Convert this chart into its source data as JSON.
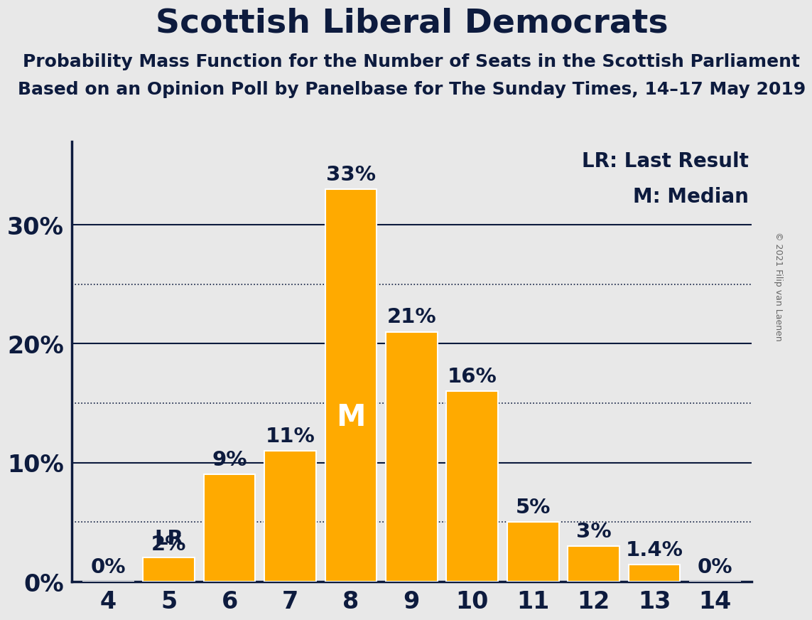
{
  "title": "Scottish Liberal Democrats",
  "subtitle1": "Probability Mass Function for the Number of Seats in the Scottish Parliament",
  "subtitle2": "Based on an Opinion Poll by Panelbase for The Sunday Times, 14–17 May 2019",
  "copyright": "© 2021 Filip van Laenen",
  "categories": [
    4,
    5,
    6,
    7,
    8,
    9,
    10,
    11,
    12,
    13,
    14
  ],
  "values": [
    0,
    2,
    9,
    11,
    33,
    21,
    16,
    5,
    3,
    1.4,
    0
  ],
  "bar_color": "#FFAA00",
  "bar_edge_color": "#FFFFFF",
  "background_color": "#E8E8E8",
  "axis_text_color": "#0D1B3E",
  "title_color": "#0D1B3E",
  "gridline_solid_color": "#0D1B3E",
  "gridline_dotted_color": "#0D1B3E",
  "ylim": [
    0,
    37
  ],
  "yticks_solid": [
    0,
    10,
    20,
    30
  ],
  "yticks_dotted": [
    5,
    15,
    25
  ],
  "lr_bar": 5,
  "median_bar": 8,
  "legend_lr": "LR: Last Result",
  "legend_m": "M: Median",
  "title_fontsize": 34,
  "subtitle_fontsize": 18,
  "ytick_fontsize": 24,
  "xtick_fontsize": 24,
  "bar_label_fontsize": 21,
  "bar_label_lr_fontsize": 21,
  "median_label_fontsize": 30,
  "legend_fontsize": 20,
  "copyright_fontsize": 9
}
